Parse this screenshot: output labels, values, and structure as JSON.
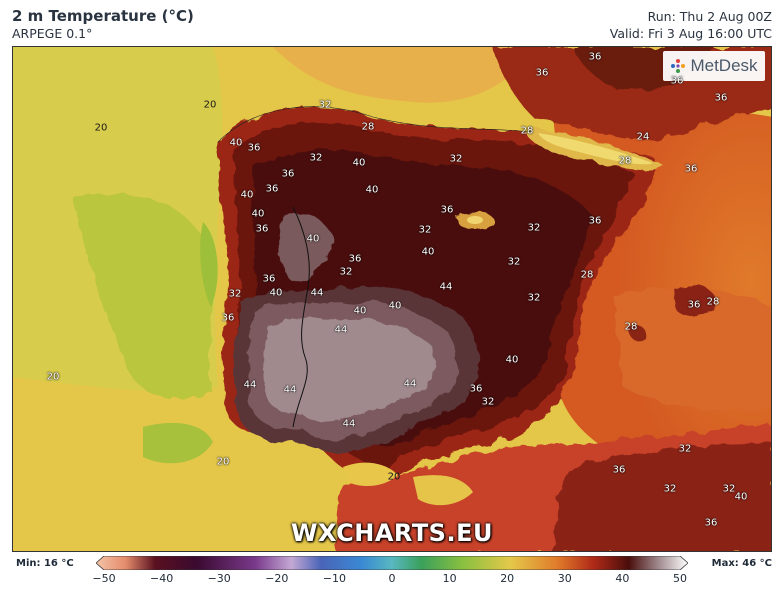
{
  "header": {
    "title": "2 m Temperature (°C)",
    "model": "ARPEGE 0.1°",
    "run": "Run: Thu 2 Aug 00Z",
    "valid": "Valid: Fri 3 Aug 16:00 UTC"
  },
  "logo": {
    "text": "MetDesk"
  },
  "watermark": "WXCHARTS.EU",
  "legend": {
    "min_label": "Min: 16 °C",
    "max_label": "Max: 46 °C",
    "ticks": [
      "−50",
      "−40",
      "−30",
      "−20",
      "−10",
      "0",
      "10",
      "20",
      "30",
      "40",
      "50"
    ],
    "range": [
      -50,
      50
    ]
  },
  "contour_labels": [
    "20",
    "20",
    "20",
    "20",
    "20",
    "24",
    "28",
    "28",
    "28",
    "28",
    "28",
    "28",
    "32",
    "32",
    "32",
    "32",
    "32",
    "32",
    "32",
    "32",
    "32",
    "32",
    "32",
    "32",
    "32",
    "36",
    "36",
    "36",
    "36",
    "36",
    "36",
    "36",
    "36",
    "36",
    "36",
    "36",
    "36",
    "36",
    "36",
    "36",
    "36",
    "36",
    "36",
    "40",
    "40",
    "40",
    "40",
    "40",
    "40",
    "40",
    "40",
    "40",
    "40",
    "40",
    "40",
    "44",
    "44",
    "44",
    "44",
    "44",
    "44",
    "44",
    "44"
  ]
}
